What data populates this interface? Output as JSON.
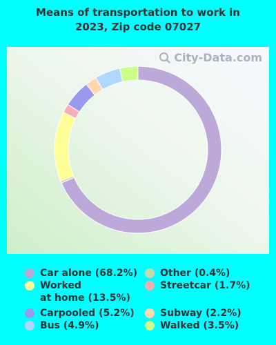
{
  "title_lines": [
    "Means of transportation to work in",
    "2023, Zip code 07027"
  ],
  "watermark": "City-Data.com",
  "colors": {
    "background": "#00FFFF",
    "text": "#333333"
  },
  "chart_data": {
    "type": "pie",
    "variant": "donut",
    "title": "Means of transportation to work in 2023, Zip code 07027",
    "slices": [
      {
        "label": "Car alone",
        "value": 68.2,
        "legend": "Car alone (68.2%)",
        "color": "#BCA8D9"
      },
      {
        "label": "Other",
        "value": 0.4,
        "legend": "Other (0.4%)",
        "color": "#C8D8B0"
      },
      {
        "label": "Worked at home",
        "value": 13.5,
        "legend": "Worked\nat home (13.5%)",
        "color": "#FFFF99"
      },
      {
        "label": "Streetcar",
        "value": 1.7,
        "legend": "Streetcar (1.7%)",
        "color": "#F4AFB4"
      },
      {
        "label": "Carpooled",
        "value": 5.2,
        "legend": "Carpooled (5.2%)",
        "color": "#9999EE"
      },
      {
        "label": "Subway",
        "value": 2.2,
        "legend": "Subway (2.2%)",
        "color": "#FFD8B0"
      },
      {
        "label": "Bus",
        "value": 4.9,
        "legend": "Bus (4.9%)",
        "color": "#B0D8FF"
      },
      {
        "label": "Walked",
        "value": 3.5,
        "legend": "Walked (3.5%)",
        "color": "#CCFF88"
      }
    ],
    "legend_placement": "bottom"
  }
}
